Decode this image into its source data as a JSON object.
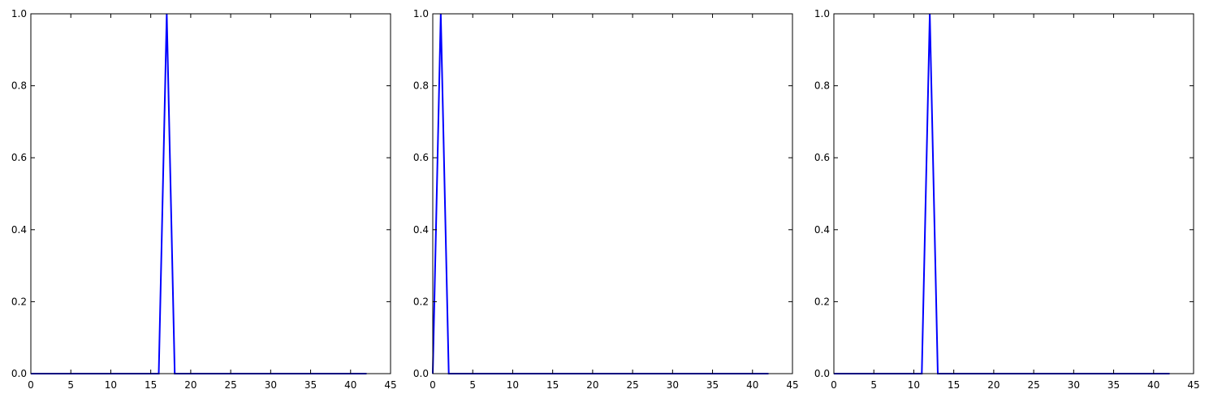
{
  "figure": {
    "background": "#ffffff"
  },
  "chart_data": [
    {
      "type": "line",
      "title": "",
      "xlabel": "",
      "ylabel": "",
      "xlim": [
        0,
        45
      ],
      "ylim": [
        0,
        1.0
      ],
      "xticks": [
        0,
        5,
        10,
        15,
        20,
        25,
        30,
        35,
        40,
        45
      ],
      "yticks": [
        0.0,
        0.2,
        0.4,
        0.6,
        0.8,
        1.0
      ],
      "xtick_labels": [
        "0",
        "5",
        "10",
        "15",
        "20",
        "25",
        "30",
        "35",
        "40",
        "45"
      ],
      "ytick_labels": [
        "0.0",
        "0.2",
        "0.4",
        "0.6",
        "0.8",
        "1.0"
      ],
      "grid": false,
      "legend": "none",
      "series": [
        {
          "color": "#0000ff",
          "x": [
            0,
            16,
            17,
            18,
            42
          ],
          "y": [
            0,
            0,
            1,
            0,
            0
          ]
        }
      ]
    },
    {
      "type": "line",
      "title": "",
      "xlabel": "",
      "ylabel": "",
      "xlim": [
        0,
        45
      ],
      "ylim": [
        0,
        1.0
      ],
      "xticks": [
        0,
        5,
        10,
        15,
        20,
        25,
        30,
        35,
        40,
        45
      ],
      "yticks": [
        0.0,
        0.2,
        0.4,
        0.6,
        0.8,
        1.0
      ],
      "xtick_labels": [
        "0",
        "5",
        "10",
        "15",
        "20",
        "25",
        "30",
        "35",
        "40",
        "45"
      ],
      "ytick_labels": [
        "0.0",
        "0.2",
        "0.4",
        "0.6",
        "0.8",
        "1.0"
      ],
      "grid": false,
      "legend": "none",
      "series": [
        {
          "color": "#0000ff",
          "x": [
            0,
            1,
            2,
            42
          ],
          "y": [
            0,
            1,
            0,
            0
          ]
        }
      ]
    },
    {
      "type": "line",
      "title": "",
      "xlabel": "",
      "ylabel": "",
      "xlim": [
        0,
        45
      ],
      "ylim": [
        0,
        1.0
      ],
      "xticks": [
        0,
        5,
        10,
        15,
        20,
        25,
        30,
        35,
        40,
        45
      ],
      "yticks": [
        0.0,
        0.2,
        0.4,
        0.6,
        0.8,
        1.0
      ],
      "xtick_labels": [
        "0",
        "5",
        "10",
        "15",
        "20",
        "25",
        "30",
        "35",
        "40",
        "45"
      ],
      "ytick_labels": [
        "0.0",
        "0.2",
        "0.4",
        "0.6",
        "0.8",
        "1.0"
      ],
      "grid": false,
      "legend": "none",
      "series": [
        {
          "color": "#0000ff",
          "x": [
            0,
            11,
            12,
            13,
            42
          ],
          "y": [
            0,
            0,
            1,
            0,
            0
          ]
        }
      ]
    }
  ]
}
